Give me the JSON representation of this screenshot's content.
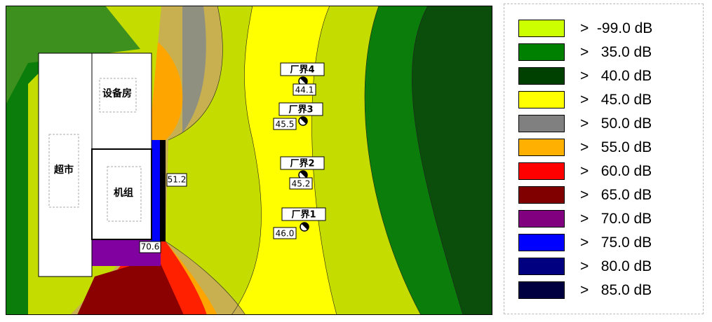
{
  "buildings": [
    {
      "label": "超市"
    },
    {
      "label": "设备房"
    },
    {
      "label": "机组"
    }
  ],
  "receivers": [
    {
      "label": "厂界4",
      "value": "44.1"
    },
    {
      "label": "厂界3",
      "value": "45.5"
    },
    {
      "label": "厂界2",
      "value": "45.2"
    },
    {
      "label": "厂界1",
      "value": "46.0"
    }
  ],
  "point_labels": [
    "51.2",
    "70.6"
  ],
  "legend": [
    {
      "label": ">  -99.0 dB",
      "color": "#ccff00"
    },
    {
      "label": ">   35.0 dB",
      "color": "#008000"
    },
    {
      "label": ">   40.0 dB",
      "color": "#004000"
    },
    {
      "label": ">   45.0 dB",
      "color": "#ffff00"
    },
    {
      "label": ">   50.0 dB",
      "color": "#808080"
    },
    {
      "label": ">   55.0 dB",
      "color": "#ffb000"
    },
    {
      "label": ">   60.0 dB",
      "color": "#ff0000"
    },
    {
      "label": ">   65.0 dB",
      "color": "#800000"
    },
    {
      "label": ">   70.0 dB",
      "color": "#800080"
    },
    {
      "label": ">   75.0 dB",
      "color": "#0000ff"
    },
    {
      "label": ">   80.0 dB",
      "color": "#000080"
    },
    {
      "label": ">   85.0 dB",
      "color": "#000040"
    }
  ]
}
